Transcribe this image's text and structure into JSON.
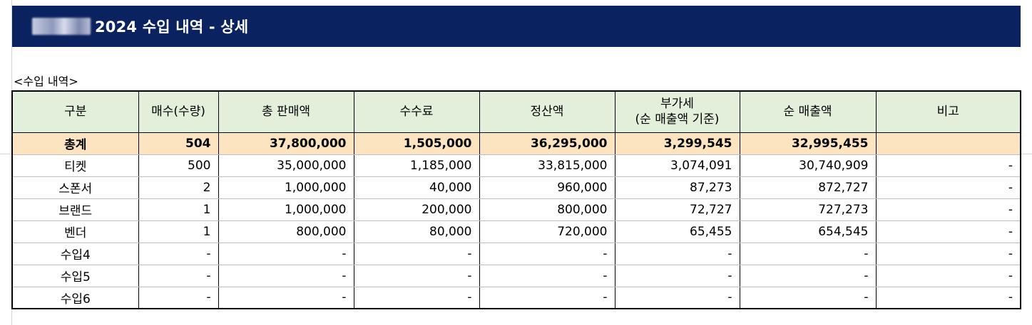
{
  "title": {
    "brand": "스니커콘",
    "text": "2024 수입 내역 - 상세"
  },
  "section_label": "<수입 내역>",
  "colors": {
    "title_bg": "#0b2260",
    "header_bg": "#e2efda",
    "total_bg": "#fce4c0"
  },
  "table": {
    "headers": [
      "구분",
      "매수(수량)",
      "총 판매액",
      "수수료",
      "정산액",
      "부가세\n(순 매출액 기준)",
      "순 매출액",
      "비고"
    ],
    "rows": [
      [
        "총계",
        "504",
        "37,800,000",
        "1,505,000",
        "36,295,000",
        "3,299,545",
        "32,995,455",
        ""
      ],
      [
        "티켓",
        "500",
        "35,000,000",
        "1,185,000",
        "33,815,000",
        "3,074,091",
        "30,740,909",
        "-"
      ],
      [
        "스폰서",
        "2",
        "1,000,000",
        "40,000",
        "960,000",
        "87,273",
        "872,727",
        "-"
      ],
      [
        "브랜드",
        "1",
        "1,000,000",
        "200,000",
        "800,000",
        "72,727",
        "727,273",
        "-"
      ],
      [
        "벤더",
        "1",
        "800,000",
        "80,000",
        "720,000",
        "65,455",
        "654,545",
        "-"
      ],
      [
        "수입4",
        "-",
        "-",
        "-",
        "-",
        "-",
        "-",
        "-"
      ],
      [
        "수입5",
        "-",
        "-",
        "-",
        "-",
        "-",
        "-",
        "-"
      ],
      [
        "수입6",
        "-",
        "-",
        "-",
        "-",
        "-",
        "-",
        "-"
      ]
    ]
  }
}
